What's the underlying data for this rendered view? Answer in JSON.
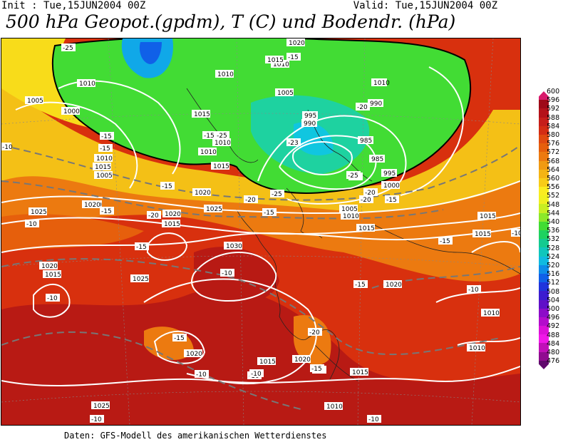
{
  "header": {
    "init": "Init : Tue,15JUN2004 00Z",
    "valid": "Valid: Tue,15JUN2004 00Z",
    "title": "500 hPa Geopot.(gpdm), T (C) und Bodendr. (hPa)"
  },
  "footer": "Daten: GFS-Modell des amerikanischen Wetterdienstes",
  "colorbar": {
    "levels": [
      600,
      596,
      592,
      588,
      584,
      580,
      576,
      572,
      568,
      564,
      560,
      556,
      552,
      548,
      544,
      540,
      536,
      532,
      528,
      524,
      520,
      516,
      512,
      508,
      504,
      500,
      496,
      492,
      488,
      484,
      480,
      476
    ],
    "colors": [
      "#d81a6b",
      "#9e0a18",
      "#b4121a",
      "#c61e1a",
      "#d42d14",
      "#e04a10",
      "#e65f0c",
      "#ec7a10",
      "#f09a12",
      "#f4b414",
      "#f8cc18",
      "#faec20",
      "#f0f020",
      "#c8ee22",
      "#8ce82a",
      "#42dc34",
      "#1ed260",
      "#14ca90",
      "#10c6bc",
      "#10bae0",
      "#0e8ce8",
      "#1060e8",
      "#2034dc",
      "#3c1cd0",
      "#6010c8",
      "#8c0cc8",
      "#b40ccc",
      "#dc10d8",
      "#f018e8",
      "#c010b8",
      "#900c90",
      "#60086c"
    ]
  },
  "map": {
    "pressure_labels": [
      "1020",
      "1010",
      "1010",
      "1005",
      "1000",
      "1015",
      "1010",
      "1010",
      "1015",
      "1020",
      "1025",
      "1020",
      "1020",
      "1015",
      "1015",
      "1030",
      "1025",
      "1020",
      "1015",
      "1025",
      "1020",
      "1015",
      "1010",
      "1025",
      "1020",
      "1015",
      "1015",
      "1020",
      "1010",
      "1010",
      "1015",
      "1015",
      "1010",
      "1010",
      "1005",
      "1005",
      "995",
      "990",
      "985",
      "990",
      "995",
      "1000",
      "1015",
      "1005",
      "1010",
      "1010",
      "985",
      "1020"
    ],
    "temp_labels": [
      "-25",
      "-15",
      "-15",
      "-15",
      "-15",
      "-10",
      "-20",
      "-15",
      "-10",
      "-10",
      "-15",
      "-10",
      "-10",
      "-10",
      "-10",
      "-15",
      "-20",
      "-20",
      "-25",
      "-25",
      "-20",
      "-15",
      "-23",
      "-25",
      "-20",
      "-15",
      "-15",
      "-10",
      "-15",
      "-15",
      "-10",
      "-10",
      "-20",
      "-15",
      "-25",
      "-10",
      "-15"
    ]
  }
}
